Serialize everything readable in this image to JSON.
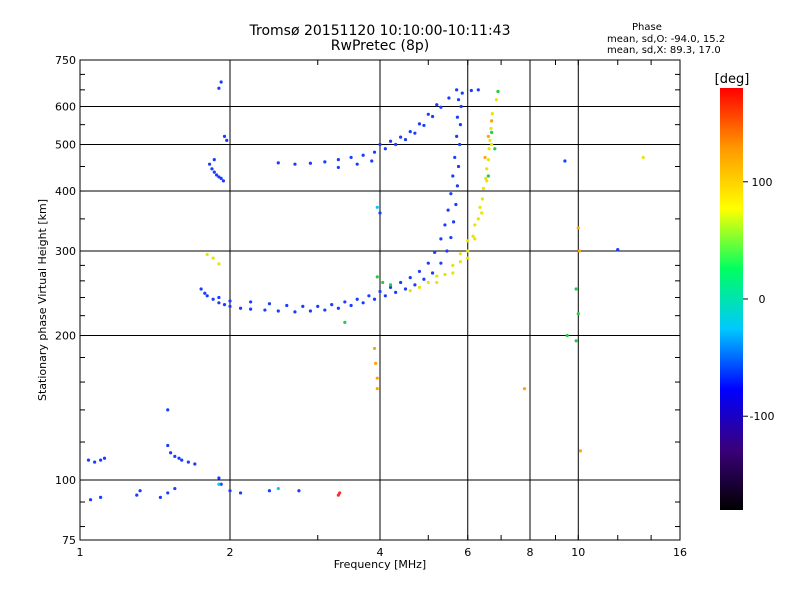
{
  "chart_data": {
    "type": "scatter",
    "title": "Tromsø 20151120 10:10:00-10:11:43",
    "subtitle": "RwPretec (8p)",
    "xlabel": "Frequency [MHz]",
    "ylabel": "Stationary phase Virtual Height [km]",
    "x_scale": "log",
    "y_scale": "log",
    "xlim": [
      1,
      16
    ],
    "ylim": [
      75,
      750
    ],
    "x_ticks": [
      "1",
      "2",
      "4",
      "6",
      "8",
      "10",
      "16"
    ],
    "x_tick_values": [
      1,
      2,
      4,
      6,
      8,
      10,
      16
    ],
    "y_ticks": [
      "75",
      "100",
      "200",
      "300",
      "400",
      "500",
      "600",
      "750"
    ],
    "y_tick_values": [
      75,
      100,
      200,
      300,
      400,
      500,
      600,
      750
    ],
    "grid": true,
    "phase_legend": {
      "title": "Phase",
      "line_o": "mean, sd,O: -94.0, 15.2",
      "line_x": "mean, sd,X:  89.3, 17.0"
    },
    "colorbar": {
      "label": "[deg]",
      "ticks": [
        "100",
        "0",
        "-100"
      ],
      "tick_values": [
        100,
        0,
        -100
      ],
      "range": [
        -180,
        180
      ],
      "colors": [
        "#000000",
        "#3a007a",
        "#0000ff",
        "#00c8ff",
        "#00ff60",
        "#ffff00",
        "#ff9900",
        "#ff0000"
      ]
    },
    "series": [
      {
        "color": "#1a3cff",
        "points": [
          [
            1.04,
            110
          ],
          [
            1.07,
            109
          ],
          [
            1.1,
            110
          ],
          [
            1.12,
            111
          ],
          [
            1.05,
            91
          ],
          [
            1.1,
            92
          ],
          [
            1.3,
            93
          ],
          [
            1.32,
            95
          ],
          [
            1.45,
            92
          ],
          [
            1.5,
            94
          ],
          [
            1.55,
            96
          ],
          [
            1.5,
            118
          ],
          [
            1.52,
            114
          ],
          [
            1.55,
            112
          ],
          [
            1.6,
            110
          ],
          [
            1.65,
            109
          ],
          [
            1.7,
            108
          ],
          [
            1.58,
            111
          ],
          [
            1.5,
            140
          ],
          [
            1.9,
            101
          ],
          [
            1.92,
            98
          ],
          [
            2.0,
            95
          ],
          [
            2.1,
            94
          ],
          [
            2.4,
            95
          ],
          [
            2.75,
            95
          ],
          [
            1.82,
            455
          ],
          [
            1.84,
            445
          ],
          [
            1.86,
            438
          ],
          [
            1.88,
            432
          ],
          [
            1.9,
            428
          ],
          [
            1.92,
            425
          ],
          [
            1.94,
            420
          ],
          [
            1.86,
            465
          ],
          [
            1.9,
            655
          ],
          [
            1.92,
            675
          ],
          [
            1.95,
            520
          ],
          [
            1.97,
            510
          ],
          [
            1.75,
            250
          ],
          [
            1.78,
            245
          ],
          [
            1.8,
            242
          ],
          [
            1.85,
            238
          ],
          [
            1.9,
            234
          ],
          [
            1.95,
            232
          ],
          [
            2.0,
            230
          ],
          [
            2.1,
            228
          ],
          [
            2.2,
            227
          ],
          [
            2.35,
            226
          ],
          [
            2.5,
            225
          ],
          [
            2.7,
            224
          ],
          [
            2.9,
            225
          ],
          [
            3.1,
            226
          ],
          [
            3.3,
            228
          ],
          [
            3.5,
            231
          ],
          [
            3.7,
            234
          ],
          [
            3.9,
            238
          ],
          [
            4.1,
            242
          ],
          [
            4.3,
            246
          ],
          [
            4.5,
            250
          ],
          [
            4.7,
            255
          ],
          [
            4.9,
            262
          ],
          [
            5.1,
            270
          ],
          [
            5.3,
            283
          ],
          [
            5.45,
            300
          ],
          [
            5.55,
            320
          ],
          [
            5.62,
            345
          ],
          [
            5.68,
            375
          ],
          [
            5.72,
            410
          ],
          [
            5.75,
            450
          ],
          [
            5.78,
            500
          ],
          [
            5.8,
            550
          ],
          [
            5.82,
            600
          ],
          [
            1.9,
            240
          ],
          [
            2.0,
            236
          ],
          [
            2.2,
            235
          ],
          [
            2.4,
            233
          ],
          [
            2.6,
            231
          ],
          [
            2.8,
            230
          ],
          [
            3.0,
            230
          ],
          [
            3.2,
            232
          ],
          [
            3.4,
            235
          ],
          [
            3.6,
            238
          ],
          [
            3.8,
            242
          ],
          [
            4.0,
            247
          ],
          [
            4.2,
            252
          ],
          [
            4.4,
            258
          ],
          [
            4.6,
            264
          ],
          [
            4.8,
            272
          ],
          [
            5.0,
            283
          ],
          [
            5.15,
            298
          ],
          [
            5.3,
            318
          ],
          [
            5.4,
            340
          ],
          [
            5.48,
            365
          ],
          [
            5.55,
            395
          ],
          [
            5.6,
            430
          ],
          [
            5.65,
            470
          ],
          [
            5.7,
            520
          ],
          [
            5.72,
            570
          ],
          [
            5.75,
            620
          ],
          [
            2.5,
            458
          ],
          [
            2.7,
            455
          ],
          [
            2.9,
            457
          ],
          [
            3.1,
            460
          ],
          [
            3.3,
            465
          ],
          [
            3.5,
            470
          ],
          [
            3.7,
            475
          ],
          [
            3.9,
            482
          ],
          [
            4.1,
            490
          ],
          [
            4.3,
            500
          ],
          [
            4.5,
            512
          ],
          [
            4.7,
            528
          ],
          [
            4.9,
            548
          ],
          [
            5.1,
            572
          ],
          [
            5.3,
            598
          ],
          [
            5.5,
            625
          ],
          [
            5.7,
            650
          ],
          [
            4.0,
            500
          ],
          [
            4.2,
            508
          ],
          [
            4.4,
            518
          ],
          [
            4.6,
            532
          ],
          [
            4.8,
            552
          ],
          [
            5.0,
            578
          ],
          [
            5.2,
            605
          ],
          [
            3.3,
            448
          ],
          [
            3.6,
            455
          ],
          [
            3.85,
            462
          ],
          [
            5.85,
            640
          ],
          [
            6.1,
            648
          ],
          [
            6.3,
            650
          ],
          [
            9.4,
            462
          ],
          [
            12.0,
            302
          ],
          [
            4.0,
            360
          ]
        ]
      },
      {
        "color": "#e6e600",
        "points": [
          [
            5.2,
            258
          ],
          [
            5.4,
            268
          ],
          [
            5.6,
            280
          ],
          [
            5.8,
            296
          ],
          [
            6.0,
            315
          ],
          [
            6.2,
            340
          ],
          [
            6.35,
            370
          ],
          [
            6.45,
            405
          ],
          [
            6.55,
            445
          ],
          [
            6.62,
            490
          ],
          [
            6.68,
            540
          ],
          [
            6.72,
            580
          ],
          [
            5.6,
            270
          ],
          [
            5.8,
            285
          ],
          [
            6.0,
            300
          ],
          [
            6.15,
            322
          ],
          [
            6.3,
            350
          ],
          [
            6.42,
            385
          ],
          [
            6.52,
            425
          ],
          [
            6.6,
            465
          ],
          [
            6.65,
            510
          ],
          [
            6.7,
            560
          ],
          [
            4.6,
            248
          ],
          [
            4.8,
            252
          ],
          [
            5.0,
            258
          ],
          [
            5.2,
            266
          ],
          [
            6.0,
            290
          ],
          [
            6.2,
            318
          ],
          [
            6.4,
            360
          ],
          [
            6.55,
            420
          ],
          [
            6.7,
            500
          ],
          [
            6.85,
            620
          ],
          [
            6.9,
            645
          ],
          [
            1.8,
            295
          ],
          [
            1.85,
            290
          ],
          [
            1.9,
            282
          ],
          [
            13.5,
            470
          ]
        ]
      },
      {
        "color": "#ffa500",
        "points": [
          [
            3.9,
            188
          ],
          [
            3.92,
            175
          ],
          [
            3.95,
            163
          ],
          [
            3.95,
            155
          ],
          [
            10.0,
            335
          ],
          [
            10.05,
            300
          ],
          [
            10.1,
            115
          ],
          [
            7.8,
            155
          ],
          [
            6.5,
            470
          ],
          [
            6.6,
            520
          ],
          [
            6.7,
            560
          ]
        ]
      },
      {
        "color": "#22cc44",
        "points": [
          [
            3.95,
            265
          ],
          [
            4.05,
            258
          ],
          [
            4.2,
            255
          ],
          [
            6.7,
            530
          ],
          [
            6.8,
            490
          ],
          [
            6.6,
            430
          ],
          [
            9.9,
            250
          ],
          [
            10.0,
            222
          ],
          [
            9.9,
            195
          ],
          [
            9.5,
            200
          ],
          [
            3.4,
            213
          ],
          [
            6.9,
            645
          ]
        ]
      },
      {
        "color": "#ff2a2a",
        "points": [
          [
            3.3,
            93
          ],
          [
            3.32,
            94
          ]
        ]
      },
      {
        "color": "#00c8ff",
        "points": [
          [
            3.95,
            370
          ],
          [
            1.9,
            98
          ],
          [
            2.5,
            96
          ]
        ]
      }
    ]
  }
}
